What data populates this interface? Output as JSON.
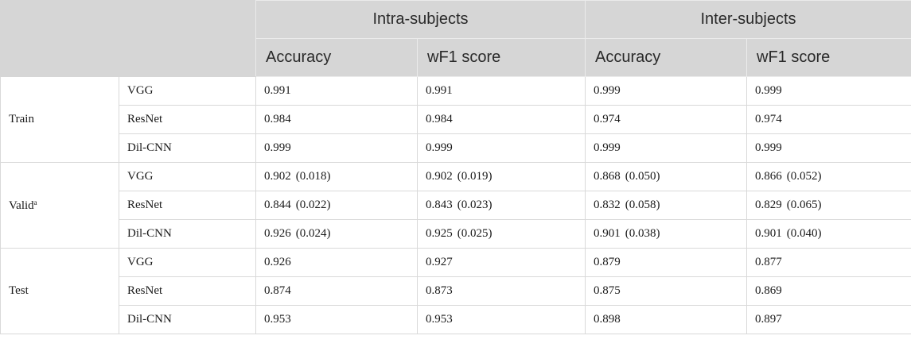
{
  "header": {
    "group1": "Intra-subjects",
    "group2": "Inter-subjects",
    "accuracy": "Accuracy",
    "wf1": "wF1 score"
  },
  "groups": [
    {
      "label": "Train",
      "sup": "",
      "rows": [
        {
          "model": "VGG",
          "intra_acc": "0.991",
          "intra_wf1": "0.991",
          "inter_acc": "0.999",
          "inter_wf1": "0.999"
        },
        {
          "model": "ResNet",
          "intra_acc": "0.984",
          "intra_wf1": "0.984",
          "inter_acc": "0.974",
          "inter_wf1": "0.974"
        },
        {
          "model": "Dil-CNN",
          "intra_acc": "0.999",
          "intra_wf1": "0.999",
          "inter_acc": "0.999",
          "inter_wf1": "0.999"
        }
      ]
    },
    {
      "label": "Valid",
      "sup": "a",
      "rows": [
        {
          "model": "VGG",
          "intra_acc": "0.902",
          "intra_acc_sd": "(0.018)",
          "intra_wf1": "0.902",
          "intra_wf1_sd": "(0.019)",
          "inter_acc": "0.868",
          "inter_acc_sd": "(0.050)",
          "inter_wf1": "0.866",
          "inter_wf1_sd": "(0.052)"
        },
        {
          "model": "ResNet",
          "intra_acc": "0.844",
          "intra_acc_sd": "(0.022)",
          "intra_wf1": "0.843",
          "intra_wf1_sd": "(0.023)",
          "inter_acc": "0.832",
          "inter_acc_sd": "(0.058)",
          "inter_wf1": "0.829",
          "inter_wf1_sd": "(0.065)"
        },
        {
          "model": "Dil-CNN",
          "intra_acc": "0.926",
          "intra_acc_sd": "(0.024)",
          "intra_wf1": "0.925",
          "intra_wf1_sd": "(0.025)",
          "inter_acc": "0.901",
          "inter_acc_sd": "(0.038)",
          "inter_wf1": "0.901",
          "inter_wf1_sd": "(0.040)"
        }
      ]
    },
    {
      "label": "Test",
      "sup": "",
      "rows": [
        {
          "model": "VGG",
          "intra_acc": "0.926",
          "intra_wf1": "0.927",
          "inter_acc": "0.879",
          "inter_wf1": "0.877"
        },
        {
          "model": "ResNet",
          "intra_acc": "0.874",
          "intra_wf1": "0.873",
          "inter_acc": "0.875",
          "inter_wf1": "0.869"
        },
        {
          "model": "Dil-CNN",
          "intra_acc": "0.953",
          "intra_wf1": "0.953",
          "inter_acc": "0.898",
          "inter_wf1": "0.897"
        }
      ]
    }
  ]
}
